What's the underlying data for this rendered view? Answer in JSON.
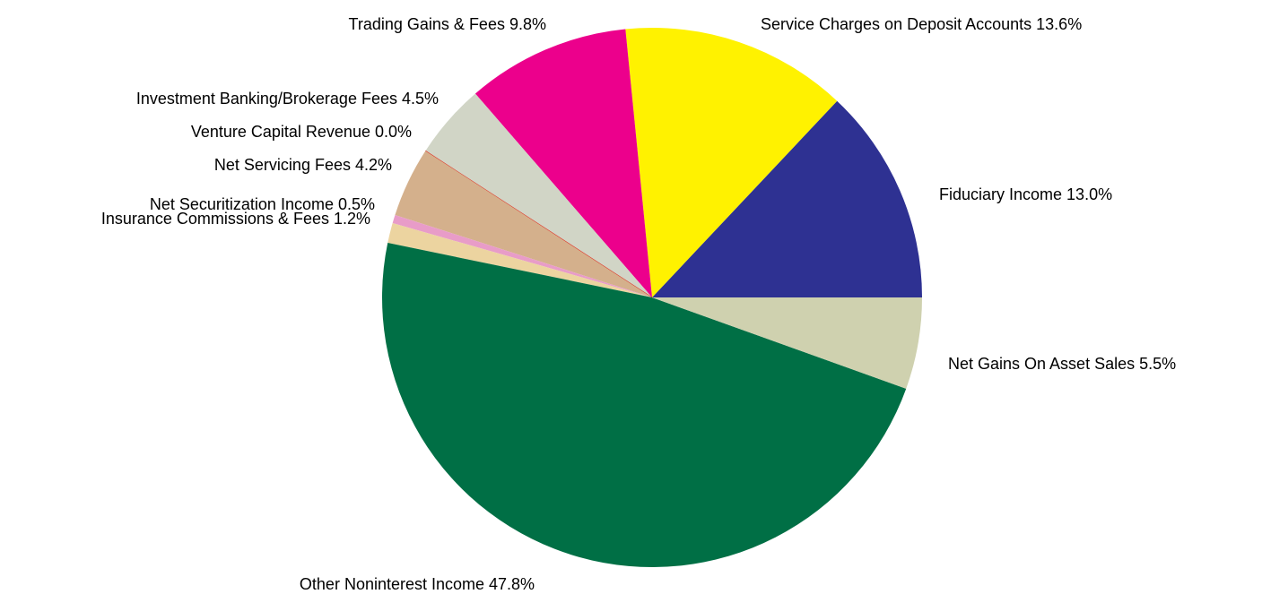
{
  "chart_data": {
    "type": "pie",
    "title": "",
    "slices": [
      {
        "label": "Fiduciary Income 13.0%",
        "value": 13.0,
        "color": "#2e3192"
      },
      {
        "label": "Service Charges on Deposit Accounts 13.6%",
        "value": 13.6,
        "color": "#fff200"
      },
      {
        "label": "Trading Gains & Fees 9.8%",
        "value": 9.8,
        "color": "#ec008c"
      },
      {
        "label": "Investment Banking/Brokerage Fees 4.5%",
        "value": 4.5,
        "color": "#d1d5c6"
      },
      {
        "label": "Venture Capital Revenue 0.0%",
        "value": 0.0,
        "color": "#e2231a"
      },
      {
        "label": "Net Servicing Fees 4.2%",
        "value": 4.2,
        "color": "#d4b08c"
      },
      {
        "label": "Net Securitization Income 0.5%",
        "value": 0.5,
        "color": "#e89cc8"
      },
      {
        "label": "Insurance Commissions & Fees 1.2%",
        "value": 1.2,
        "color": "#ecd4a0"
      },
      {
        "label": "Other Noninterest Income 47.8%",
        "value": 47.8,
        "color": "#006f45"
      },
      {
        "label": "Net Gains On Asset Sales 5.5%",
        "value": 5.5,
        "color": "#cfd1af"
      }
    ],
    "start": "3 o'clock",
    "direction": "counterclockwise",
    "legend": "none"
  }
}
